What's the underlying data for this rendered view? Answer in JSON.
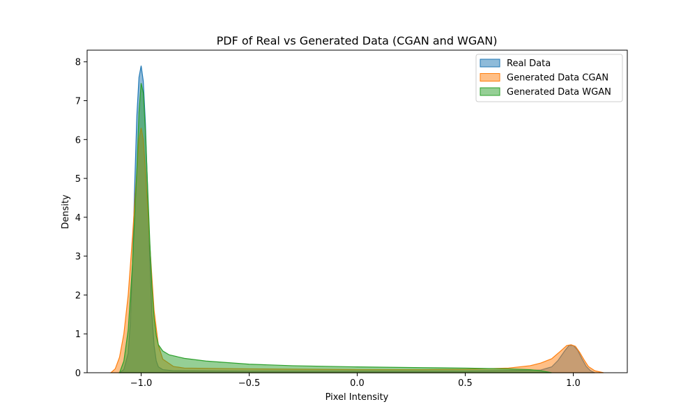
{
  "chart_data": {
    "type": "area",
    "title": "PDF of Real vs Generated Data (CGAN and WGAN)",
    "xlabel": "Pixel Intensity",
    "ylabel": "Density",
    "xlim": [
      -1.25,
      1.25
    ],
    "ylim": [
      0,
      8.3
    ],
    "x_ticks": [
      -1.0,
      -0.5,
      0.0,
      0.5,
      1.0
    ],
    "x_tick_labels": [
      "−1.0",
      "−0.5",
      "0.0",
      "0.5",
      "1.0"
    ],
    "y_ticks": [
      0,
      1,
      2,
      3,
      4,
      5,
      6,
      7,
      8
    ],
    "y_tick_labels": [
      "0",
      "1",
      "2",
      "3",
      "4",
      "5",
      "6",
      "7",
      "8"
    ],
    "grid": false,
    "legend_position": "upper right",
    "series": [
      {
        "name": "Real Data",
        "color": "#1f77b4",
        "points": [
          [
            -1.1,
            0
          ],
          [
            -1.08,
            0.08
          ],
          [
            -1.06,
            0.5
          ],
          [
            -1.05,
            1.3
          ],
          [
            -1.04,
            2.8
          ],
          [
            -1.03,
            4.8
          ],
          [
            -1.02,
            6.6
          ],
          [
            -1.01,
            7.6
          ],
          [
            -1.0,
            7.9
          ],
          [
            -0.99,
            7.5
          ],
          [
            -0.98,
            6.4
          ],
          [
            -0.97,
            4.7
          ],
          [
            -0.96,
            2.9
          ],
          [
            -0.95,
            1.5
          ],
          [
            -0.94,
            0.7
          ],
          [
            -0.93,
            0.3
          ],
          [
            -0.92,
            0.15
          ],
          [
            -0.9,
            0.08
          ],
          [
            -0.85,
            0.05
          ],
          [
            -0.5,
            0.04
          ],
          [
            0.0,
            0.04
          ],
          [
            0.5,
            0.04
          ],
          [
            0.85,
            0.07
          ],
          [
            0.9,
            0.15
          ],
          [
            0.93,
            0.32
          ],
          [
            0.96,
            0.56
          ],
          [
            0.98,
            0.7
          ],
          [
            1.0,
            0.7
          ],
          [
            1.02,
            0.58
          ],
          [
            1.04,
            0.36
          ],
          [
            1.06,
            0.16
          ],
          [
            1.08,
            0.05
          ],
          [
            1.1,
            0
          ]
        ]
      },
      {
        "name": "Generated Data CGAN",
        "color": "#ff7f0e",
        "points": [
          [
            -1.14,
            0
          ],
          [
            -1.12,
            0.1
          ],
          [
            -1.1,
            0.4
          ],
          [
            -1.08,
            1.0
          ],
          [
            -1.06,
            2.0
          ],
          [
            -1.04,
            3.5
          ],
          [
            -1.02,
            5.2
          ],
          [
            -1.01,
            6.0
          ],
          [
            -1.0,
            6.3
          ],
          [
            -0.99,
            6.0
          ],
          [
            -0.98,
            5.2
          ],
          [
            -0.96,
            3.3
          ],
          [
            -0.94,
            1.6
          ],
          [
            -0.92,
            0.7
          ],
          [
            -0.9,
            0.35
          ],
          [
            -0.85,
            0.16
          ],
          [
            -0.8,
            0.12
          ],
          [
            -0.5,
            0.1
          ],
          [
            0.0,
            0.08
          ],
          [
            0.3,
            0.08
          ],
          [
            0.5,
            0.09
          ],
          [
            0.7,
            0.12
          ],
          [
            0.8,
            0.18
          ],
          [
            0.85,
            0.25
          ],
          [
            0.9,
            0.36
          ],
          [
            0.94,
            0.55
          ],
          [
            0.97,
            0.7
          ],
          [
            0.99,
            0.72
          ],
          [
            1.01,
            0.68
          ],
          [
            1.03,
            0.52
          ],
          [
            1.05,
            0.33
          ],
          [
            1.07,
            0.16
          ],
          [
            1.1,
            0.05
          ],
          [
            1.14,
            0
          ]
        ]
      },
      {
        "name": "Generated Data WGAN",
        "color": "#2ca02c",
        "points": [
          [
            -1.1,
            0
          ],
          [
            -1.08,
            0.3
          ],
          [
            -1.06,
            1.1
          ],
          [
            -1.04,
            2.8
          ],
          [
            -1.02,
            5.2
          ],
          [
            -1.01,
            6.7
          ],
          [
            -1.0,
            7.45
          ],
          [
            -0.99,
            7.2
          ],
          [
            -0.98,
            6.2
          ],
          [
            -0.97,
            4.8
          ],
          [
            -0.96,
            3.4
          ],
          [
            -0.95,
            2.2
          ],
          [
            -0.94,
            1.4
          ],
          [
            -0.93,
            0.95
          ],
          [
            -0.92,
            0.72
          ],
          [
            -0.9,
            0.56
          ],
          [
            -0.87,
            0.46
          ],
          [
            -0.8,
            0.37
          ],
          [
            -0.7,
            0.3
          ],
          [
            -0.6,
            0.26
          ],
          [
            -0.5,
            0.22
          ],
          [
            -0.3,
            0.18
          ],
          [
            0.0,
            0.15
          ],
          [
            0.3,
            0.13
          ],
          [
            0.5,
            0.12
          ],
          [
            0.7,
            0.1
          ],
          [
            0.8,
            0.08
          ],
          [
            0.85,
            0.05
          ],
          [
            0.88,
            0.02
          ],
          [
            0.9,
            0
          ]
        ]
      }
    ]
  }
}
